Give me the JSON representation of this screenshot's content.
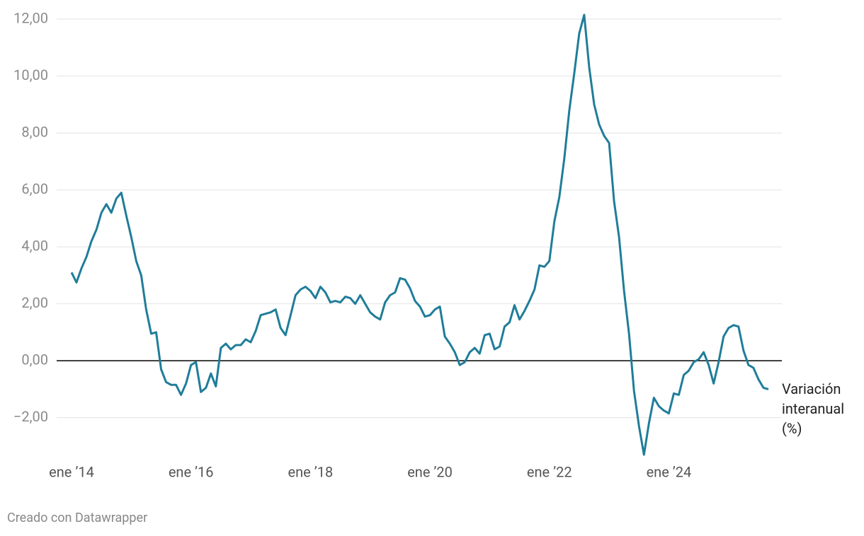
{
  "chart_data": {
    "type": "line",
    "series_label": "Variación interanual (%)",
    "footer": "Creado con Datawrapper",
    "x": [
      "2014-01",
      "2014-02",
      "2014-03",
      "2014-04",
      "2014-05",
      "2014-06",
      "2014-07",
      "2014-08",
      "2014-09",
      "2014-10",
      "2014-11",
      "2014-12",
      "2015-01",
      "2015-02",
      "2015-03",
      "2015-04",
      "2015-05",
      "2015-06",
      "2015-07",
      "2015-08",
      "2015-09",
      "2015-10",
      "2015-11",
      "2015-12",
      "2016-01",
      "2016-02",
      "2016-03",
      "2016-04",
      "2016-05",
      "2016-06",
      "2016-07",
      "2016-08",
      "2016-09",
      "2016-10",
      "2016-11",
      "2016-12",
      "2017-01",
      "2017-02",
      "2017-03",
      "2017-04",
      "2017-05",
      "2017-06",
      "2017-07",
      "2017-08",
      "2017-09",
      "2017-10",
      "2017-11",
      "2017-12",
      "2018-01",
      "2018-02",
      "2018-03",
      "2018-04",
      "2018-05",
      "2018-06",
      "2018-07",
      "2018-08",
      "2018-09",
      "2018-10",
      "2018-11",
      "2018-12",
      "2019-01",
      "2019-02",
      "2019-03",
      "2019-04",
      "2019-05",
      "2019-06",
      "2019-07",
      "2019-08",
      "2019-09",
      "2019-10",
      "2019-11",
      "2019-12",
      "2020-01",
      "2020-02",
      "2020-03",
      "2020-04",
      "2020-05",
      "2020-06",
      "2020-07",
      "2020-08",
      "2020-09",
      "2020-10",
      "2020-11",
      "2020-12",
      "2021-01",
      "2021-02",
      "2021-03",
      "2021-04",
      "2021-05",
      "2021-06",
      "2021-07",
      "2021-08",
      "2021-09",
      "2021-10",
      "2021-11",
      "2021-12",
      "2022-01",
      "2022-02",
      "2022-03",
      "2022-04",
      "2022-05",
      "2022-06",
      "2022-07",
      "2022-08",
      "2022-09",
      "2022-10",
      "2022-11",
      "2022-12",
      "2023-01",
      "2023-02",
      "2023-03",
      "2023-04",
      "2023-05",
      "2023-06",
      "2023-07",
      "2023-08",
      "2023-09",
      "2023-10",
      "2023-11",
      "2023-12",
      "2024-01",
      "2024-02",
      "2024-03",
      "2024-04",
      "2024-05",
      "2024-06",
      "2024-07",
      "2024-08",
      "2024-09",
      "2024-10",
      "2024-11",
      "2024-12",
      "2025-01",
      "2025-02",
      "2025-03",
      "2025-04",
      "2025-05",
      "2025-06",
      "2025-07",
      "2025-08",
      "2025-09"
    ],
    "series": [
      {
        "name": "Variación interanual (%)",
        "color": "#1f7d99",
        "values": [
          3.1,
          2.75,
          3.25,
          3.65,
          4.2,
          4.6,
          5.2,
          5.5,
          5.2,
          5.7,
          5.9,
          5.1,
          4.35,
          3.5,
          3.0,
          1.8,
          0.95,
          1.0,
          -0.3,
          -0.75,
          -0.85,
          -0.85,
          -1.2,
          -0.8,
          -0.15,
          -0.05,
          -1.1,
          -0.95,
          -0.45,
          -0.9,
          0.45,
          0.6,
          0.4,
          0.55,
          0.55,
          0.75,
          0.65,
          1.05,
          1.6,
          1.65,
          1.7,
          1.8,
          1.15,
          0.9,
          1.6,
          2.3,
          2.5,
          2.6,
          2.45,
          2.2,
          2.6,
          2.4,
          2.05,
          2.1,
          2.05,
          2.25,
          2.2,
          2.0,
          2.3,
          2.0,
          1.7,
          1.55,
          1.45,
          2.05,
          2.3,
          2.4,
          2.9,
          2.85,
          2.55,
          2.1,
          1.9,
          1.55,
          1.6,
          1.8,
          1.9,
          0.85,
          0.6,
          0.3,
          -0.15,
          -0.05,
          0.3,
          0.45,
          0.25,
          0.9,
          0.95,
          0.4,
          0.5,
          1.2,
          1.35,
          1.95,
          1.45,
          1.75,
          2.1,
          2.5,
          3.35,
          3.3,
          3.5,
          4.9,
          5.75,
          7.1,
          8.8,
          10.1,
          11.5,
          12.15,
          10.3,
          9.0,
          8.3,
          7.9,
          7.65,
          5.6,
          4.35,
          2.45,
          0.95,
          -1.05,
          -2.3,
          -3.3,
          -2.2,
          -1.3,
          -1.6,
          -1.75,
          -1.85,
          -1.15,
          -1.2,
          -0.5,
          -0.35,
          -0.05,
          0.05,
          0.3,
          -0.15,
          -0.8,
          -0.05,
          0.85,
          1.15,
          1.25,
          1.2,
          0.35,
          -0.15,
          -0.25,
          -0.65,
          -0.95,
          -1.0
        ]
      }
    ],
    "xlim": [
      "2014-01",
      "2025-09"
    ],
    "xticks": [
      {
        "value": "2014-01",
        "label": "ene ’14"
      },
      {
        "value": "2016-01",
        "label": "ene ’16"
      },
      {
        "value": "2018-01",
        "label": "ene ’18"
      },
      {
        "value": "2020-01",
        "label": "ene ’20"
      },
      {
        "value": "2022-01",
        "label": "ene ’22"
      },
      {
        "value": "2024-01",
        "label": "ene ’24"
      }
    ],
    "ylim": [
      -3.4,
      12.2
    ],
    "yticks": [
      {
        "value": -2,
        "label": "−2,00"
      },
      {
        "value": 0,
        "label": "0,00"
      },
      {
        "value": 2,
        "label": "2,00"
      },
      {
        "value": 4,
        "label": "4,00"
      },
      {
        "value": 6,
        "label": "6,00"
      },
      {
        "value": 8,
        "label": "8,00"
      },
      {
        "value": 10,
        "label": "10,00"
      },
      {
        "value": 12,
        "label": "12,00"
      }
    ],
    "grid": true
  }
}
